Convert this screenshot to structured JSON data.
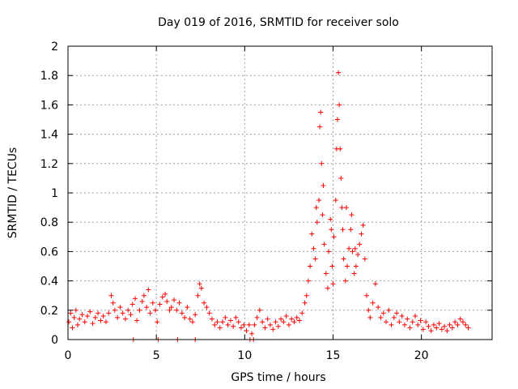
{
  "chart_data": {
    "type": "scatter",
    "title": "Day 019 of 2016, SRMTID for receiver solo",
    "xlabel": "GPS time / hours",
    "ylabel": "SRMTID / TECUs",
    "xlim": [
      0,
      24
    ],
    "ylim": [
      0,
      2
    ],
    "xticks": [
      0,
      5,
      10,
      15,
      20
    ],
    "xtick_labels": [
      "0",
      "5",
      "10",
      "15",
      "20"
    ],
    "yticks": [
      0,
      0.2,
      0.4,
      0.6,
      0.8,
      1,
      1.2,
      1.4,
      1.6,
      1.8,
      2
    ],
    "ytick_labels": [
      "0",
      "0.2",
      "0.4",
      "0.6",
      "0.8",
      "1",
      "1.2",
      "1.4",
      "1.6",
      "1.8",
      "2"
    ],
    "grid": true,
    "marker": "+",
    "color": "#ff0000",
    "series": [
      {
        "name": "SRMTID",
        "points": [
          [
            0.05,
            0.12
          ],
          [
            0.15,
            0.18
          ],
          [
            0.25,
            0.08
          ],
          [
            0.35,
            0.15
          ],
          [
            0.45,
            0.2
          ],
          [
            0.55,
            0.1
          ],
          [
            0.65,
            0.14
          ],
          [
            0.8,
            0.17
          ],
          [
            0.95,
            0.12
          ],
          [
            1.1,
            0.16
          ],
          [
            1.25,
            0.19
          ],
          [
            1.4,
            0.11
          ],
          [
            1.55,
            0.15
          ],
          [
            1.7,
            0.18
          ],
          [
            1.85,
            0.13
          ],
          [
            2.0,
            0.16
          ],
          [
            2.15,
            0.12
          ],
          [
            2.3,
            0.18
          ],
          [
            2.45,
            0.3
          ],
          [
            2.55,
            0.25
          ],
          [
            2.65,
            0.2
          ],
          [
            2.8,
            0.15
          ],
          [
            2.95,
            0.22
          ],
          [
            3.1,
            0.18
          ],
          [
            3.25,
            0.14
          ],
          [
            3.4,
            0.2
          ],
          [
            3.55,
            0.17
          ],
          [
            3.65,
            0.24
          ],
          [
            3.8,
            0.28
          ],
          [
            3.9,
            0.13
          ],
          [
            4.05,
            0.2
          ],
          [
            4.2,
            0.26
          ],
          [
            4.3,
            0.3
          ],
          [
            4.45,
            0.22
          ],
          [
            4.55,
            0.34
          ],
          [
            4.65,
            0.18
          ],
          [
            4.8,
            0.25
          ],
          [
            4.95,
            0.2
          ],
          [
            5.05,
            0.12
          ],
          [
            5.2,
            0.24
          ],
          [
            5.35,
            0.29
          ],
          [
            5.5,
            0.31
          ],
          [
            5.6,
            0.26
          ],
          [
            5.75,
            0.2
          ],
          [
            5.85,
            0.22
          ],
          [
            6.0,
            0.27
          ],
          [
            6.15,
            0.2
          ],
          [
            6.3,
            0.25
          ],
          [
            6.45,
            0.18
          ],
          [
            6.6,
            0.15
          ],
          [
            6.75,
            0.22
          ],
          [
            6.9,
            0.14
          ],
          [
            7.05,
            0.12
          ],
          [
            7.2,
            0.17
          ],
          [
            7.35,
            0.3
          ],
          [
            7.45,
            0.38
          ],
          [
            7.55,
            0.35
          ],
          [
            7.7,
            0.25
          ],
          [
            7.85,
            0.22
          ],
          [
            8.0,
            0.18
          ],
          [
            8.15,
            0.14
          ],
          [
            8.3,
            0.1
          ],
          [
            8.45,
            0.12
          ],
          [
            8.6,
            0.08
          ],
          [
            8.75,
            0.12
          ],
          [
            8.9,
            0.15
          ],
          [
            9.05,
            0.1
          ],
          [
            9.2,
            0.13
          ],
          [
            9.35,
            0.09
          ],
          [
            9.5,
            0.15
          ],
          [
            9.65,
            0.12
          ],
          [
            9.8,
            0.08
          ],
          [
            9.95,
            0.1
          ],
          [
            10.1,
            0.06
          ],
          [
            10.25,
            0.1
          ],
          [
            10.4,
            0.04
          ],
          [
            10.55,
            0.1
          ],
          [
            10.7,
            0.15
          ],
          [
            10.85,
            0.2
          ],
          [
            11.0,
            0.12
          ],
          [
            11.15,
            0.08
          ],
          [
            11.3,
            0.14
          ],
          [
            11.45,
            0.1
          ],
          [
            11.6,
            0.07
          ],
          [
            11.75,
            0.12
          ],
          [
            11.9,
            0.09
          ],
          [
            12.05,
            0.14
          ],
          [
            12.2,
            0.12
          ],
          [
            12.35,
            0.16
          ],
          [
            12.5,
            0.1
          ],
          [
            12.65,
            0.14
          ],
          [
            12.8,
            0.12
          ],
          [
            12.95,
            0.15
          ],
          [
            13.1,
            0.13
          ],
          [
            13.25,
            0.18
          ],
          [
            13.4,
            0.25
          ],
          [
            13.5,
            0.3
          ],
          [
            13.6,
            0.4
          ],
          [
            13.7,
            0.5
          ],
          [
            13.8,
            0.72
          ],
          [
            13.9,
            0.62
          ],
          [
            14.0,
            0.55
          ],
          [
            14.1,
            0.8
          ],
          [
            14.2,
            0.95
          ],
          [
            14.25,
            1.45
          ],
          [
            14.3,
            1.55
          ],
          [
            14.35,
            1.2
          ],
          [
            14.4,
            0.85
          ],
          [
            14.5,
            0.65
          ],
          [
            14.6,
            0.45
          ],
          [
            14.7,
            0.35
          ],
          [
            14.75,
            0.6
          ],
          [
            14.85,
            0.82
          ],
          [
            14.95,
            0.5
          ],
          [
            15.05,
            0.7
          ],
          [
            15.15,
            0.95
          ],
          [
            15.2,
            1.3
          ],
          [
            15.25,
            1.5
          ],
          [
            15.3,
            1.82
          ],
          [
            15.35,
            1.6
          ],
          [
            15.4,
            1.3
          ],
          [
            15.45,
            1.1
          ],
          [
            15.5,
            0.9
          ],
          [
            15.6,
            0.55
          ],
          [
            15.7,
            0.4
          ],
          [
            15.8,
            0.5
          ],
          [
            15.9,
            0.62
          ],
          [
            16.0,
            0.75
          ],
          [
            16.1,
            0.6
          ],
          [
            16.2,
            0.45
          ],
          [
            16.3,
            0.5
          ],
          [
            16.4,
            0.58
          ],
          [
            16.5,
            0.65
          ],
          [
            16.6,
            0.72
          ],
          [
            16.7,
            0.78
          ],
          [
            16.8,
            0.55
          ],
          [
            16.9,
            0.3
          ],
          [
            17.0,
            0.2
          ],
          [
            17.1,
            0.15
          ],
          [
            17.25,
            0.25
          ],
          [
            17.4,
            0.38
          ],
          [
            17.55,
            0.22
          ],
          [
            17.7,
            0.15
          ],
          [
            17.85,
            0.18
          ],
          [
            18.0,
            0.12
          ],
          [
            18.15,
            0.2
          ],
          [
            18.3,
            0.1
          ],
          [
            18.45,
            0.15
          ],
          [
            18.6,
            0.18
          ],
          [
            18.75,
            0.12
          ],
          [
            18.9,
            0.16
          ],
          [
            19.05,
            0.1
          ],
          [
            19.2,
            0.14
          ],
          [
            19.35,
            0.08
          ],
          [
            19.5,
            0.12
          ],
          [
            19.65,
            0.16
          ],
          [
            19.8,
            0.1
          ],
          [
            19.95,
            0.13
          ],
          [
            20.1,
            0.07
          ],
          [
            20.25,
            0.12
          ],
          [
            20.4,
            0.09
          ],
          [
            20.55,
            0.06
          ],
          [
            20.7,
            0.1
          ],
          [
            20.85,
            0.08
          ],
          [
            21.0,
            0.11
          ],
          [
            21.15,
            0.07
          ],
          [
            21.3,
            0.09
          ],
          [
            21.45,
            0.06
          ],
          [
            21.6,
            0.1
          ],
          [
            21.75,
            0.08
          ],
          [
            21.9,
            0.12
          ],
          [
            22.05,
            0.1
          ],
          [
            22.2,
            0.14
          ],
          [
            22.35,
            0.12
          ],
          [
            22.5,
            0.1
          ],
          [
            22.65,
            0.08
          ],
          [
            5.1,
            0.0
          ],
          [
            6.2,
            0.0
          ],
          [
            7.2,
            0.0
          ],
          [
            10.3,
            0.0
          ],
          [
            10.5,
            0.0
          ],
          [
            3.7,
            0.0
          ],
          [
            14.05,
            0.9
          ],
          [
            14.45,
            1.05
          ],
          [
            14.9,
            0.75
          ],
          [
            15.0,
            0.38
          ],
          [
            15.55,
            0.75
          ],
          [
            15.75,
            0.9
          ],
          [
            16.05,
            0.85
          ],
          [
            16.25,
            0.62
          ]
        ]
      }
    ]
  }
}
